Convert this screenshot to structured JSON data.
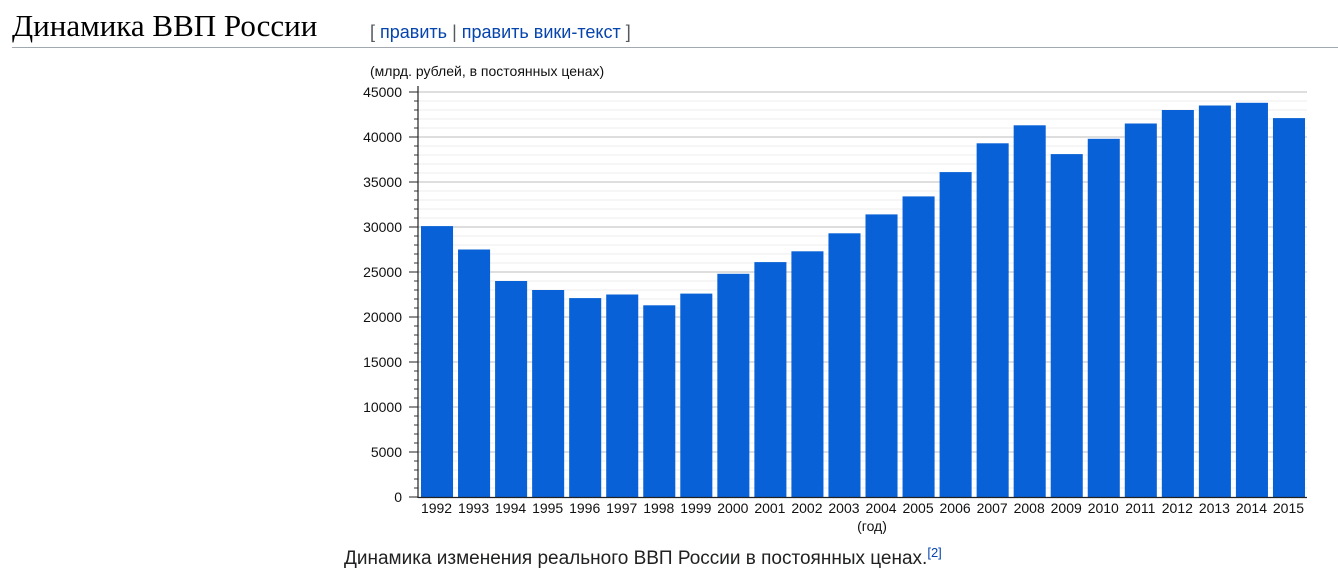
{
  "section": {
    "title": "Динамика ВВП России",
    "edit_open": "[",
    "edit_label": "править",
    "edit_separator": "|",
    "edit_source_label": "править вики-текст",
    "edit_close": "]"
  },
  "colors": {
    "bar": "#0861d6",
    "link": "#0645ad"
  },
  "chart_data": {
    "type": "bar",
    "title": "",
    "ylabel": "(млрд. рублей, в постоянных ценах)",
    "xlabel": "(год)",
    "ylim": [
      0,
      45000
    ],
    "yticks": [
      0,
      5000,
      10000,
      15000,
      20000,
      25000,
      30000,
      35000,
      40000,
      45000
    ],
    "ytick_labels": [
      "0",
      "5000",
      "10000",
      "15000",
      "20000",
      "25000",
      "30000",
      "35000",
      "40000",
      "45000"
    ],
    "minor_tick_step": 1000,
    "grid": true,
    "categories": [
      "1992",
      "1993",
      "1994",
      "1995",
      "1996",
      "1997",
      "1998",
      "1999",
      "2000",
      "2001",
      "2002",
      "2003",
      "2004",
      "2005",
      "2006",
      "2007",
      "2008",
      "2009",
      "2010",
      "2011",
      "2012",
      "2013",
      "2014",
      "2015"
    ],
    "values": [
      30100,
      27500,
      24000,
      23000,
      22100,
      22500,
      21300,
      22600,
      24800,
      26100,
      27300,
      29300,
      31400,
      33400,
      36100,
      39300,
      41300,
      38100,
      39800,
      41500,
      43000,
      43500,
      43800,
      42100
    ]
  },
  "caption": {
    "text": "Динамика изменения реального ВВП России в постоянных ценах.",
    "ref": "[2]"
  }
}
